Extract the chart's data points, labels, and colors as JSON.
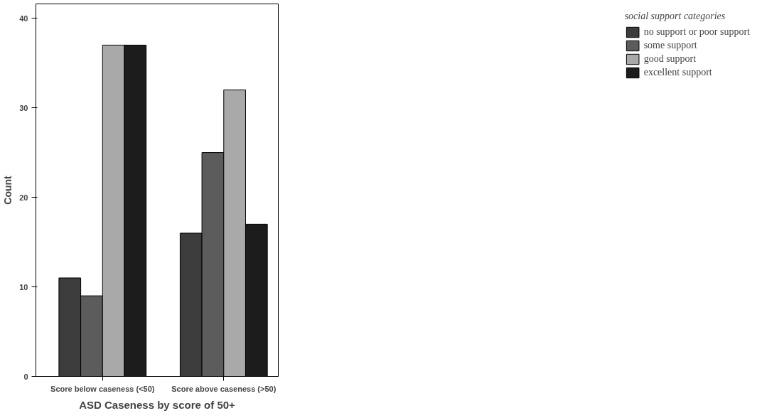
{
  "chart_data": {
    "type": "bar",
    "xlabel": "ASD Caseness by score of 50+",
    "ylabel": "Count",
    "legend_title": "social support categories",
    "categories": [
      "Score below caseness (<50)",
      "Score above caseness (>50)"
    ],
    "series": [
      {
        "name": "no support or poor support",
        "color": "#3c3c3c",
        "values": [
          11,
          16
        ]
      },
      {
        "name": "some support",
        "color": "#5c5c5c",
        "values": [
          9,
          25
        ]
      },
      {
        "name": "good support",
        "color": "#a9a9a9",
        "values": [
          37,
          32
        ]
      },
      {
        "name": "excellent support",
        "color": "#1c1c1c",
        "values": [
          37,
          17
        ]
      }
    ],
    "ylim": [
      0,
      41.6
    ],
    "yticks": [
      0,
      10,
      20,
      30,
      40
    ],
    "grid": false,
    "legend": "top right"
  }
}
